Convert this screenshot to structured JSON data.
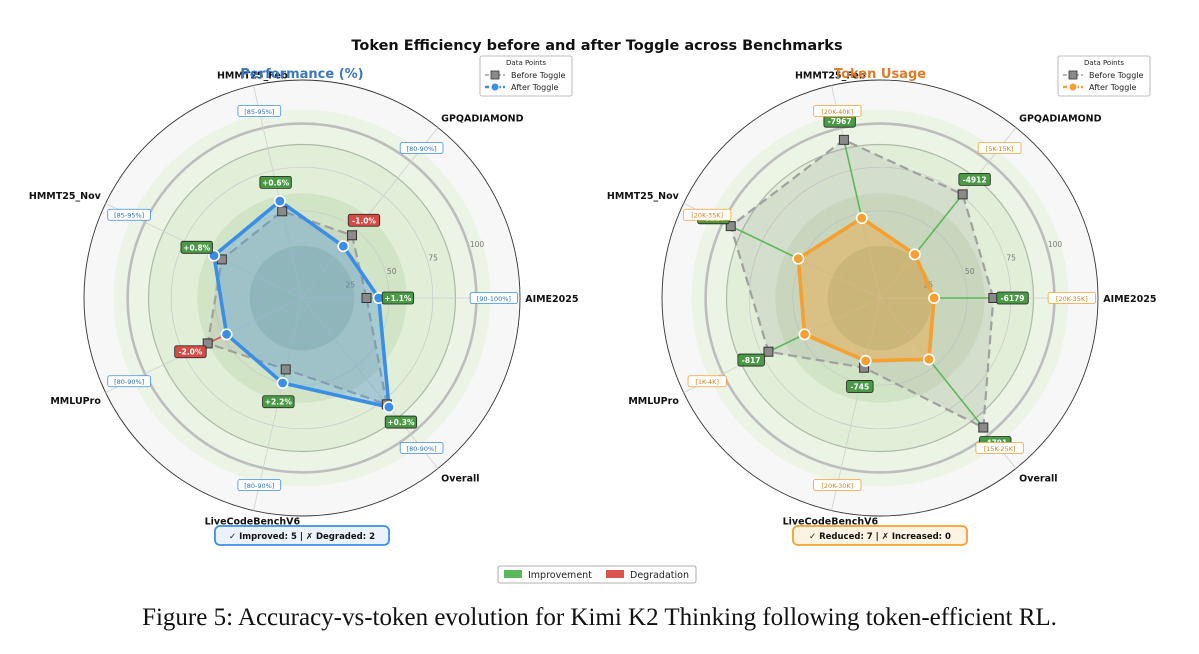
{
  "figure": {
    "suptitle": "Token Efficiency before and after Toggle across Benchmarks",
    "caption": "Figure 5: Accuracy-vs-token evolution for Kimi K2 Thinking following token-efficient RL.",
    "bottom_legend": [
      {
        "label": "Improvement",
        "color": "#5cb85c"
      },
      {
        "label": "Degradation",
        "color": "#d9534f"
      }
    ]
  },
  "chart_data": [
    {
      "type": "radar",
      "title": "Performance (%)",
      "title_color": "#3a78c0",
      "accent": "#3b8ee6",
      "legend": {
        "title": "Data Points",
        "entries": [
          "Before Toggle",
          "After Toggle"
        ],
        "placement": "top-right"
      },
      "categories": [
        "AIME2025",
        "GPQADIAMOND",
        "HMMT25_Feb",
        "HMMT25_Nov",
        "MMLUPro",
        "LiveCodeBenchV6",
        "Overall"
      ],
      "ranges": [
        "[90-100%]",
        "[80-90%]",
        "[85-95%]",
        "[85-95%]",
        "[80-90%]",
        "[80-90%]",
        "[80-90%]"
      ],
      "tick_labels": [
        "25",
        "50",
        "75",
        "100"
      ],
      "rlim": [
        0,
        125
      ],
      "series": [
        {
          "name": "Before Toggle",
          "values": [
            37,
            46,
            51,
            51,
            60,
            42,
            78
          ]
        },
        {
          "name": "After Toggle",
          "values": [
            44,
            38,
            57,
            56,
            48,
            50,
            80
          ]
        }
      ],
      "delta_labels": [
        "+1.1%",
        "-1.0%",
        "+0.6%",
        "+0.8%",
        "-2.0%",
        "+2.2%",
        "+0.3%"
      ],
      "delta_status": [
        "improve",
        "degrade",
        "improve",
        "improve",
        "degrade",
        "improve",
        "improve"
      ],
      "summary": "✓ Improved: 5  |  ✗ Degraded: 2"
    },
    {
      "type": "radar",
      "title": "Token Usage",
      "title_color": "#e07b28",
      "accent": "#f5a030",
      "legend": {
        "title": "Data Points",
        "entries": [
          "Before Toggle",
          "After Toggle"
        ],
        "placement": "top-right"
      },
      "categories": [
        "AIME2025",
        "GPQADIAMOND",
        "HMMT25_Feb",
        "HMMT25_Nov",
        "MMLUPro",
        "LiveCodeBenchV6",
        "Overall"
      ],
      "ranges": [
        "[20K-35K]",
        "[5K-15K]",
        "[20K-40K]",
        "[20K-35K]",
        "[1K-4K]",
        "[20K-30K]",
        "[15K-25K]"
      ],
      "tick_labels": [
        "25",
        "50",
        "75",
        "100"
      ],
      "rlim": [
        0,
        125
      ],
      "series": [
        {
          "name": "Before Toggle",
          "values": [
            65,
            76,
            93,
            95,
            71,
            41,
            95
          ]
        },
        {
          "name": "After Toggle",
          "values": [
            31,
            32,
            47,
            52,
            48,
            37,
            45
          ]
        }
      ],
      "delta_labels": [
        "-6179",
        "-4912",
        "-7967",
        "-8127",
        "-817",
        "-745",
        "-4791"
      ],
      "delta_status": [
        "improve",
        "improve",
        "improve",
        "improve",
        "improve",
        "improve",
        "improve"
      ],
      "summary": "✓ Reduced: 7  |  ✗ Increased: 0"
    }
  ]
}
